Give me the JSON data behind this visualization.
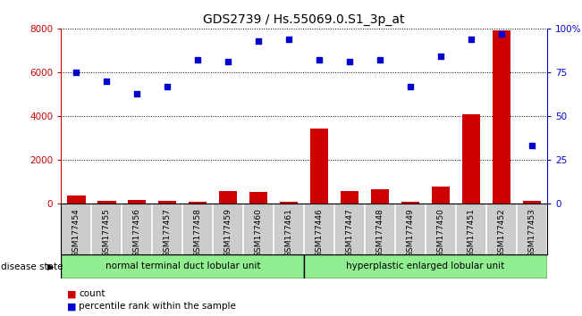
{
  "title": "GDS2739 / Hs.55069.0.S1_3p_at",
  "samples": [
    "GSM177454",
    "GSM177455",
    "GSM177456",
    "GSM177457",
    "GSM177458",
    "GSM177459",
    "GSM177460",
    "GSM177461",
    "GSM177446",
    "GSM177447",
    "GSM177448",
    "GSM177449",
    "GSM177450",
    "GSM177451",
    "GSM177452",
    "GSM177453"
  ],
  "counts": [
    380,
    150,
    170,
    150,
    100,
    580,
    540,
    80,
    3450,
    580,
    680,
    100,
    780,
    4100,
    7900,
    130
  ],
  "percentiles": [
    75,
    70,
    63,
    67,
    82,
    81,
    93,
    94,
    82,
    81,
    82,
    67,
    84,
    94,
    97,
    33
  ],
  "group1_label": "normal terminal duct lobular unit",
  "group1_count": 8,
  "group2_label": "hyperplastic enlarged lobular unit",
  "group2_count": 8,
  "disease_state_label": "disease state",
  "bar_color": "#cc0000",
  "dot_color": "#0000cc",
  "left_axis_color": "#cc0000",
  "right_axis_color": "#0000cc",
  "ylim_left": [
    0,
    8000
  ],
  "ylim_right": [
    0,
    100
  ],
  "yticks_left": [
    0,
    2000,
    4000,
    6000,
    8000
  ],
  "yticks_right": [
    0,
    25,
    50,
    75,
    100
  ],
  "bg_color": "#ffffff",
  "group_bg": "#90ee90",
  "label_box_bg": "#cccccc",
  "bar_width": 0.6
}
